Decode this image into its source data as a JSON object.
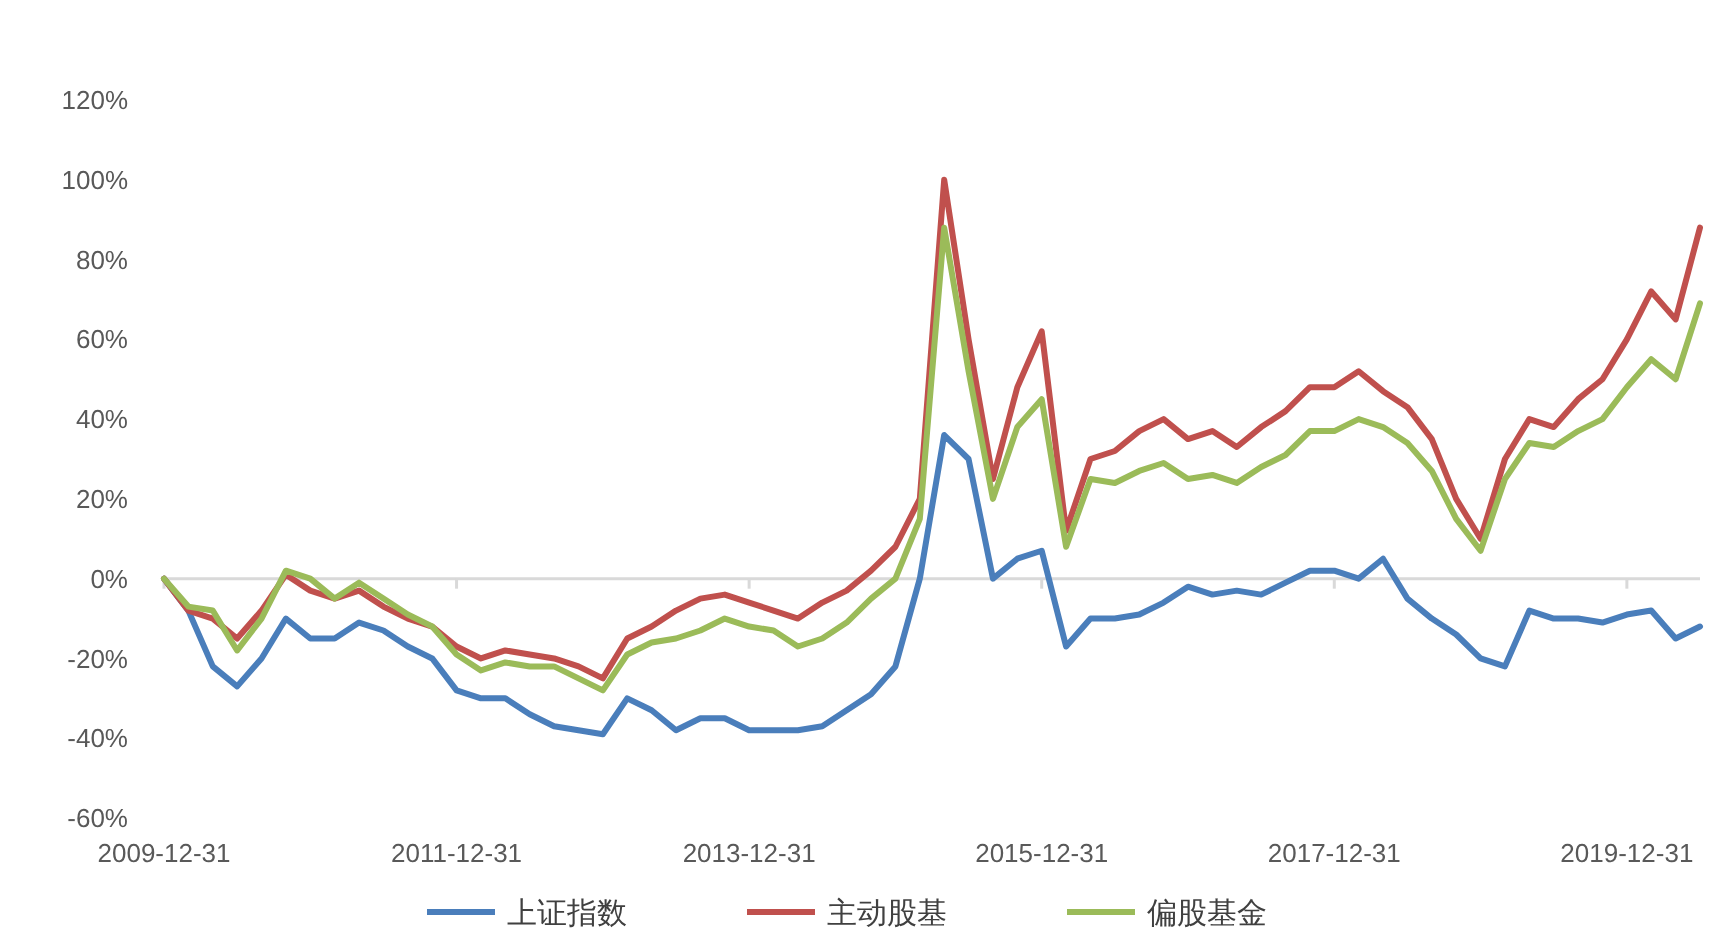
{
  "chart_data": {
    "type": "line",
    "categories": [
      "2009-12-31",
      null,
      null,
      null,
      null,
      null,
      null,
      null,
      null,
      null,
      null,
      null,
      "2011-12-31",
      null,
      null,
      null,
      null,
      null,
      null,
      null,
      null,
      null,
      null,
      null,
      "2013-12-31",
      null,
      null,
      null,
      null,
      null,
      null,
      null,
      null,
      null,
      null,
      null,
      "2015-12-31",
      null,
      null,
      null,
      null,
      null,
      null,
      null,
      null,
      null,
      null,
      null,
      "2017-12-31",
      null,
      null,
      null,
      null,
      null,
      null,
      null,
      null,
      null,
      null,
      null,
      "2019-12-31",
      null,
      null,
      null
    ],
    "series": [
      {
        "name": "上证指数",
        "color": "#4a7ebb",
        "values": [
          0,
          -8,
          -22,
          -27,
          -20,
          -10,
          -15,
          -15,
          -11,
          -13,
          -17,
          -20,
          -28,
          -30,
          -30,
          -34,
          -37,
          -38,
          -39,
          -30,
          -33,
          -38,
          -35,
          -35,
          -38,
          -38,
          -38,
          -37,
          -33,
          -29,
          -22,
          0,
          36,
          30,
          0,
          5,
          7,
          -17,
          -10,
          -10,
          -9,
          -6,
          -2,
          -4,
          -3,
          -4,
          -1,
          2,
          2,
          0,
          5,
          -5,
          -10,
          -14,
          -20,
          -22,
          -8,
          -10,
          -10,
          -11,
          -9,
          -8,
          -15,
          -12
        ]
      },
      {
        "name": "主动股基",
        "color": "#c0504d",
        "values": [
          0,
          -8,
          -10,
          -15,
          -8,
          1,
          -3,
          -5,
          -3,
          -7,
          -10,
          -12,
          -17,
          -20,
          -18,
          -19,
          -20,
          -22,
          -25,
          -15,
          -12,
          -8,
          -5,
          -4,
          -6,
          -8,
          -10,
          -6,
          -3,
          2,
          8,
          20,
          100,
          60,
          25,
          48,
          62,
          12,
          30,
          32,
          37,
          40,
          35,
          37,
          33,
          38,
          42,
          48,
          48,
          52,
          47,
          43,
          35,
          20,
          10,
          30,
          40,
          38,
          45,
          50,
          60,
          72,
          65,
          88
        ]
      },
      {
        "name": "偏股基金",
        "color": "#9bbb59",
        "values": [
          0,
          -7,
          -8,
          -18,
          -10,
          2,
          0,
          -5,
          -1,
          -5,
          -9,
          -12,
          -19,
          -23,
          -21,
          -22,
          -22,
          -25,
          -28,
          -19,
          -16,
          -15,
          -13,
          -10,
          -12,
          -13,
          -17,
          -15,
          -11,
          -5,
          0,
          15,
          88,
          52,
          20,
          38,
          45,
          8,
          25,
          24,
          27,
          29,
          25,
          26,
          24,
          28,
          31,
          37,
          37,
          40,
          38,
          34,
          27,
          15,
          7,
          25,
          34,
          33,
          37,
          40,
          48,
          55,
          50,
          69
        ]
      }
    ],
    "ylim": [
      -60,
      120
    ],
    "yticks": [
      {
        "value": -60,
        "label": "-60%"
      },
      {
        "value": -40,
        "label": "-40%"
      },
      {
        "value": -20,
        "label": "-20%"
      },
      {
        "value": 0,
        "label": "0%"
      },
      {
        "value": 20,
        "label": "20%"
      },
      {
        "value": 40,
        "label": "40%"
      },
      {
        "value": 60,
        "label": "60%"
      },
      {
        "value": 80,
        "label": "80%"
      },
      {
        "value": 100,
        "label": "100%"
      },
      {
        "value": 120,
        "label": "120%"
      }
    ],
    "ref_lines": [
      {
        "axis": "y",
        "value": 0,
        "color": "#d9d9d9"
      }
    ],
    "grid": false,
    "legend": "bottom",
    "line_style": "solid"
  }
}
